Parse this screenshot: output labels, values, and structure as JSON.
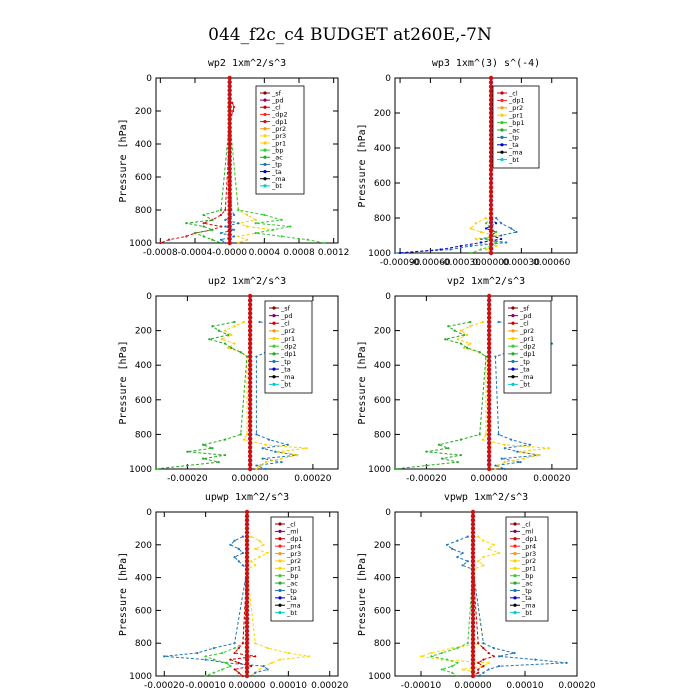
{
  "figure_title": "044_f2c_c4  BUDGET at260E,-7N",
  "chart_data": [
    {
      "type": "line",
      "title": "wp2   1xm^2/s^3",
      "ylabel": "Pressure [hPa]",
      "xlim": [
        -0.00085,
        0.00125
      ],
      "ylim": [
        1000,
        0
      ],
      "xticks": [
        "-0.0008",
        "-0.0004",
        "-0.0000",
        "0.0004",
        "0.0008",
        "0.0012"
      ],
      "xtick_values": [
        -0.0008,
        -0.0004,
        0,
        0.0004,
        0.0008,
        0.0012
      ],
      "yticks": [
        0,
        200,
        400,
        600,
        800,
        1000
      ],
      "legend": [
        "_sf",
        "_pd",
        "_cl",
        "_dp2",
        "_dp1",
        "_pr2",
        "_pr3",
        "_pr1",
        "_bp",
        "_ac",
        "_tp",
        "_ta",
        "_ma",
        "_bt"
      ],
      "legend_colors": [
        "#8b0000",
        "#8b0057",
        "#cc0000",
        "#ff2020",
        "#d01010",
        "#ff9900",
        "#ffd700",
        "#ffcc00",
        "#33cc33",
        "#22aa22",
        "#1f77b4",
        "#0000cc",
        "#000000",
        "#00cccc"
      ],
      "pressure": [
        150,
        175,
        200,
        225,
        250,
        800,
        830,
        860,
        880,
        900,
        920,
        940,
        960,
        980,
        1000
      ],
      "series": [
        {
          "name": "_dp1",
          "values": [
            3e-05,
            5e-05,
            4e-05,
            2e-05,
            1e-05,
            -5e-05,
            -0.0001,
            -0.0002,
            -0.0003,
            -0.0001,
            -0.0002,
            -0.0004,
            -0.0005,
            -0.0007,
            -0.0008
          ]
        },
        {
          "name": "_pr1",
          "values": [
            -1e-05,
            -2e-05,
            -1e-05,
            0,
            0,
            0.0001,
            0.0002,
            0.0003,
            0.0001,
            0.0002,
            0.0005,
            0.0003,
            0.0001,
            0.0002,
            0.0001
          ]
        },
        {
          "name": "_bp",
          "values": [
            0,
            1e-05,
            0,
            0,
            0,
            0.0001,
            0.0004,
            0.0006,
            0.0003,
            0.0007,
            0.0005,
            0.0003,
            0.0006,
            0.0009,
            0.0011
          ]
        },
        {
          "name": "_ac",
          "values": [
            0,
            -1e-05,
            0,
            0,
            0,
            -0.0001,
            -0.0003,
            -0.0002,
            -0.0005,
            -0.0003,
            -0.0002,
            -0.0004,
            -0.0003,
            -0.0002,
            -0.0001
          ]
        },
        {
          "name": "_tp",
          "values": [
            0,
            0,
            0,
            0,
            0,
            2e-05,
            5e-05,
            -5e-05,
            0.0001,
            -5e-05,
            5e-05,
            -0.0001,
            5e-05,
            -0.0001,
            -5e-05
          ]
        }
      ]
    },
    {
      "type": "line",
      "title": "wp3   1xm^(3) s^(-4)",
      "ylabel": "Pressure [hPa]",
      "xlim": [
        -0.00095,
        0.00085
      ],
      "ylim": [
        1000,
        0
      ],
      "xticks": [
        "-0.00090",
        "-0.00060",
        "-0.00030",
        "0.00000",
        "0.00030",
        "0.00060"
      ],
      "xtick_values": [
        -0.0009,
        -0.0006,
        -0.0003,
        0,
        0.0003,
        0.0006
      ],
      "yticks": [
        0,
        200,
        400,
        600,
        800,
        1000
      ],
      "legend": [
        "_cl",
        "_dp1",
        "_pr2",
        "_pr1",
        "_bp1",
        "_ac",
        "_tp",
        "_ta",
        "_ma",
        "_bt"
      ],
      "legend_colors": [
        "#cc0000",
        "#ff2020",
        "#ff9900",
        "#ffcc00",
        "#33cc33",
        "#22aa22",
        "#1f77b4",
        "#0000cc",
        "#000000",
        "#00cccc"
      ],
      "pressure": [
        800,
        830,
        860,
        880,
        900,
        920,
        940,
        960,
        980,
        1000
      ],
      "series": [
        {
          "name": "_tp",
          "values": [
            5e-05,
            0.0001,
            0.0002,
            0.00025,
            0.0001,
            -0.0001,
            0.00015,
            -0.0002,
            -0.0004,
            -0.00095
          ]
        },
        {
          "name": "_pr1",
          "values": [
            -5e-05,
            -0.00015,
            -0.0002,
            -0.0001,
            5e-05,
            -0.00015,
            -0.0001,
            5e-05,
            -5e-05,
            0
          ]
        },
        {
          "name": "_ta",
          "values": [
            0,
            5e-05,
            -5e-05,
            5e-05,
            0,
            0.0001,
            -0.0001,
            -0.0003,
            -0.0005,
            -0.0009
          ]
        },
        {
          "name": "_bp1",
          "values": [
            0,
            -5e-05,
            0,
            5e-05,
            0,
            -5e-05,
            5e-05,
            0,
            -0.0001,
            -0.0002
          ]
        }
      ]
    },
    {
      "type": "line",
      "title": "up2   1xm^2/s^3",
      "ylabel": "Pressure [hPa]",
      "xlim": [
        -0.0003,
        0.00028
      ],
      "ylim": [
        1000,
        0
      ],
      "xticks": [
        "-0.00020",
        "0.00000",
        "0.00020"
      ],
      "xtick_values": [
        -0.0002,
        0,
        0.0002
      ],
      "yticks": [
        0,
        200,
        400,
        600,
        800,
        1000
      ],
      "legend": [
        "_sf",
        "_pd",
        "_cl",
        "_pr2",
        "_pr1",
        "_dp2",
        "_dp1",
        "_tp",
        "_ta",
        "_ma",
        "_bt"
      ],
      "legend_colors": [
        "#8b0000",
        "#8b0057",
        "#cc0000",
        "#ff9900",
        "#ffcc00",
        "#33cc33",
        "#22aa22",
        "#1f77b4",
        "#0000cc",
        "#000000",
        "#00cccc"
      ],
      "pressure": [
        150,
        175,
        200,
        225,
        250,
        275,
        300,
        325,
        350,
        800,
        830,
        860,
        880,
        900,
        920,
        940,
        960,
        980,
        1000
      ],
      "series": [
        {
          "name": "_tp",
          "values": [
            3e-05,
            0.00012,
            7e-05,
            5e-05,
            0.00012,
            0.00018,
            0.0001,
            5e-05,
            2e-05,
            2e-05,
            6e-05,
            0.00012,
            4e-05,
            8e-05,
            0.00015,
            4e-05,
            0.0001,
            2e-05,
            5e-05
          ]
        },
        {
          "name": "_pr1",
          "values": [
            -2e-05,
            -5e-05,
            -8e-05,
            -6e-05,
            -9e-05,
            -5e-05,
            -7e-05,
            -3e-05,
            -1e-05,
            -1e-05,
            -2e-05,
            5e-05,
            0.00018,
            9e-05,
            0.00015,
            0.0001,
            5e-05,
            3e-05,
            2e-05
          ]
        },
        {
          "name": "_dp1",
          "values": [
            -5e-05,
            -0.00012,
            -0.0001,
            -7e-05,
            -0.00013,
            -8e-05,
            -6e-05,
            -3e-05,
            -1e-05,
            -3e-05,
            -8e-05,
            -0.00015,
            -0.00012,
            -0.0002,
            -8e-05,
            -0.00015,
            -0.0001,
            -0.0002,
            -0.0003
          ]
        }
      ]
    },
    {
      "type": "line",
      "title": "vp2   1xm^2/s^3",
      "ylabel": "Pressure [hPa]",
      "xlim": [
        -0.0003,
        0.00028
      ],
      "ylim": [
        1000,
        0
      ],
      "xticks": [
        "-0.00020",
        "0.00000",
        "0.00020"
      ],
      "xtick_values": [
        -0.0002,
        0,
        0.0002
      ],
      "yticks": [
        0,
        200,
        400,
        600,
        800,
        1000
      ],
      "legend": [
        "_sf",
        "_pd",
        "_cl",
        "_pr2",
        "_pr1",
        "_dp2",
        "_dp1",
        "_tp",
        "_ta",
        "_ma",
        "_bt"
      ],
      "legend_colors": [
        "#8b0000",
        "#8b0057",
        "#cc0000",
        "#ff9900",
        "#ffcc00",
        "#33cc33",
        "#22aa22",
        "#1f77b4",
        "#0000cc",
        "#000000",
        "#00cccc"
      ],
      "pressure": [
        150,
        175,
        200,
        225,
        250,
        275,
        300,
        325,
        350,
        800,
        830,
        860,
        880,
        900,
        920,
        940,
        960,
        980,
        1000
      ],
      "series": [
        {
          "name": "_tp",
          "values": [
            3e-05,
            0.00015,
            8e-05,
            6e-05,
            0.00014,
            0.0002,
            0.00012,
            6e-05,
            2e-05,
            3e-05,
            7e-05,
            0.00013,
            5e-05,
            9e-05,
            0.00016,
            4e-05,
            0.0001,
            2e-05,
            5e-05
          ]
        },
        {
          "name": "_pr1",
          "values": [
            -2e-05,
            -6e-05,
            -9e-05,
            -7e-05,
            -0.0001,
            -6e-05,
            -8e-05,
            -3e-05,
            -1e-05,
            -1e-05,
            -2e-05,
            5e-05,
            0.00019,
            0.0001,
            0.00016,
            0.00011,
            5e-05,
            3e-05,
            2e-05
          ]
        },
        {
          "name": "_dp1",
          "values": [
            -6e-05,
            -0.00013,
            -0.00011,
            -8e-05,
            -0.00014,
            -9e-05,
            -7e-05,
            -3e-05,
            -1e-05,
            -3e-05,
            -9e-05,
            -0.00016,
            -0.00013,
            -0.0002,
            -9e-05,
            -0.00015,
            -0.0001,
            -0.0002,
            -0.0003
          ]
        }
      ]
    },
    {
      "type": "line",
      "title": "upwp   1xm^2/s^3",
      "ylabel": "Pressure [hPa]",
      "xlim": [
        -0.00022,
        0.00022
      ],
      "ylim": [
        1000,
        0
      ],
      "xticks": [
        "-0.00020",
        "-0.00010",
        "0.00000",
        "0.00010",
        "0.00020"
      ],
      "xtick_values": [
        -0.0002,
        -0.0001,
        0,
        0.0001,
        0.0002
      ],
      "yticks": [
        0,
        200,
        400,
        600,
        800,
        1000
      ],
      "legend": [
        "_cl",
        "_ml",
        "_dp1",
        "_pr4",
        "_pr3",
        "_pr2",
        "_pr1",
        "_bp",
        "_ac",
        "_tp",
        "_ta",
        "_ma",
        "_bt"
      ],
      "legend_colors": [
        "#8b0000",
        "#8b0057",
        "#cc0000",
        "#ff2020",
        "#ff9900",
        "#ffcc00",
        "#ffd700",
        "#33cc33",
        "#22aa22",
        "#1f77b4",
        "#0000cc",
        "#000000",
        "#00cccc"
      ],
      "pressure": [
        150,
        175,
        200,
        225,
        250,
        275,
        300,
        325,
        350,
        800,
        830,
        860,
        880,
        900,
        920,
        940,
        960,
        980,
        1000
      ],
      "series": [
        {
          "name": "_pr1",
          "values": [
            1e-05,
            3e-05,
            4e-05,
            2e-05,
            5e-05,
            3e-05,
            1e-05,
            2e-05,
            0,
            2e-05,
            5e-05,
            0.0001,
            0.00015,
            8e-05,
            6e-05,
            4e-05,
            3e-05,
            2e-05,
            1e-05
          ]
        },
        {
          "name": "_tp",
          "values": [
            -1e-05,
            -3e-05,
            -4e-05,
            -2e-05,
            -1e-05,
            -3e-05,
            -2e-05,
            -1e-05,
            0,
            -3e-05,
            -8e-05,
            -0.00012,
            -0.0002,
            -0.0001,
            -5e-05,
            4e-05,
            5e-05,
            2e-05,
            1e-05
          ]
        },
        {
          "name": "_bp",
          "values": [
            0,
            0,
            0,
            0,
            0,
            0,
            0,
            0,
            0,
            -1e-05,
            -3e-05,
            -6e-05,
            -0.0001,
            -8e-05,
            -5e-05,
            -4e-05,
            -6e-05,
            -8e-05,
            -0.0001
          ]
        },
        {
          "name": "_dp1",
          "values": [
            0,
            0,
            0,
            0,
            0,
            0,
            0,
            0,
            0,
            -1e-05,
            -2e-05,
            -3e-05,
            2e-05,
            -4e-05,
            -2e-05,
            1e-05,
            -3e-05,
            -2e-05,
            -1e-05
          ]
        }
      ]
    },
    {
      "type": "line",
      "title": "vpwp   1xm^2/s^3",
      "ylabel": "Pressure [hPa]",
      "xlim": [
        -0.00015,
        0.0002
      ],
      "ylim": [
        1000,
        0
      ],
      "xticks": [
        "-0.00010",
        "0.00000",
        "0.00010",
        "0.00020"
      ],
      "xtick_values": [
        -0.0001,
        0,
        0.0001,
        0.0002
      ],
      "yticks": [
        0,
        200,
        400,
        600,
        800,
        1000
      ],
      "legend": [
        "_cl",
        "_ml",
        "_dp1",
        "_pr4",
        "_pr3",
        "_pr2",
        "_pr1",
        "_bp",
        "_ac",
        "_tp",
        "_ta",
        "_ma",
        "_bt"
      ],
      "legend_colors": [
        "#8b0000",
        "#8b0057",
        "#cc0000",
        "#ff2020",
        "#ff9900",
        "#ffcc00",
        "#ffd700",
        "#33cc33",
        "#22aa22",
        "#1f77b4",
        "#0000cc",
        "#000000",
        "#00cccc"
      ],
      "pressure": [
        150,
        175,
        200,
        225,
        250,
        275,
        300,
        325,
        350,
        800,
        830,
        860,
        880,
        900,
        920,
        940,
        960,
        980,
        1000
      ],
      "series": [
        {
          "name": "_pr1",
          "values": [
            1e-05,
            2e-05,
            4e-05,
            3e-05,
            5e-05,
            2e-05,
            1e-05,
            2e-05,
            0,
            2e-05,
            -4e-05,
            -8e-05,
            -0.0001,
            -6e-05,
            3e-05,
            2e-05,
            -2e-05,
            1e-05,
            0
          ]
        },
        {
          "name": "_tp",
          "values": [
            -1e-05,
            -3e-05,
            -5e-05,
            -4e-05,
            -2e-05,
            -3e-05,
            -1e-05,
            -2e-05,
            0,
            2e-05,
            4e-05,
            8e-05,
            5e-05,
            0.00012,
            0.00018,
            5e-05,
            3e-05,
            2e-05,
            1e-05
          ]
        },
        {
          "name": "_bp",
          "values": [
            0,
            0,
            0,
            0,
            0,
            0,
            0,
            0,
            0,
            -1e-05,
            -3e-05,
            -6e-05,
            -8e-05,
            -5e-05,
            -3e-05,
            -4e-05,
            -6e-05,
            -4e-05,
            -3e-05
          ]
        },
        {
          "name": "_dp1",
          "values": [
            0,
            0,
            0,
            0,
            0,
            0,
            0,
            0,
            0,
            1e-05,
            2e-05,
            3e-05,
            4e-05,
            2e-05,
            1e-05,
            2e-05,
            1e-05,
            1e-05,
            0
          ]
        }
      ]
    }
  ]
}
